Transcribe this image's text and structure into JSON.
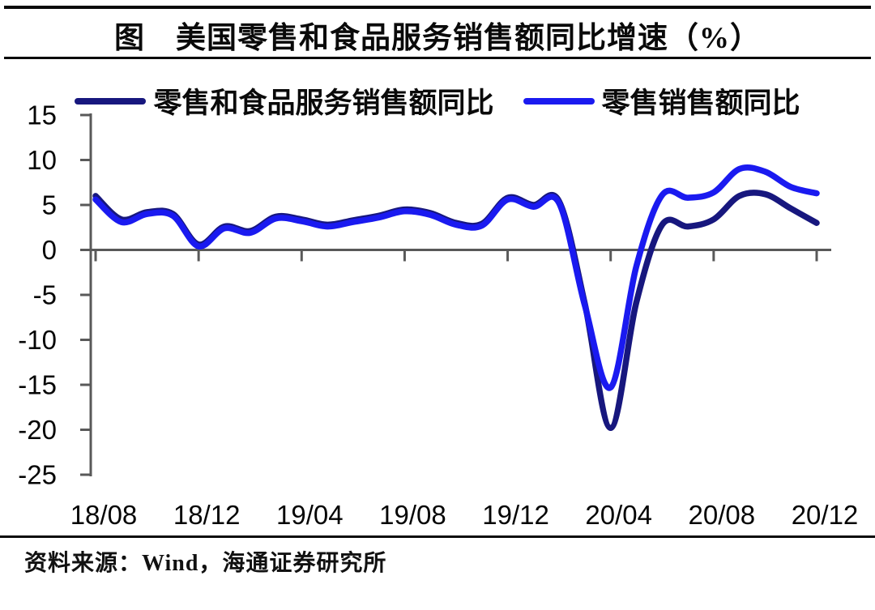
{
  "title": "图　美国零售和食品服务销售额同比增速（%）",
  "legend": [
    {
      "label": "零售和食品服务销售额同比",
      "color": "#17177e"
    },
    {
      "label": "零售销售额同比",
      "color": "#1a1af0"
    }
  ],
  "source": {
    "text": "资料来源：Wind，海通证券研究所"
  },
  "colors": {
    "series_retail_food": "#17177e",
    "series_retail": "#1a1af0",
    "axis": "#595959",
    "text": "#050505",
    "background": "#ffffff"
  },
  "chart_data": {
    "type": "line",
    "title": "图 美国零售和食品服务销售额同比增速（%）",
    "xlabel": "",
    "ylabel": "",
    "ylim": [
      -25,
      15
    ],
    "grid": false,
    "legend_position": "top",
    "x": [
      "18/08",
      "18/09",
      "18/10",
      "18/11",
      "18/12",
      "19/01",
      "19/02",
      "19/03",
      "19/04",
      "19/05",
      "19/06",
      "19/07",
      "19/08",
      "19/09",
      "19/10",
      "19/11",
      "19/12",
      "20/01",
      "20/02",
      "20/03",
      "20/04",
      "20/05",
      "20/06",
      "20/07",
      "20/08",
      "20/09",
      "20/10",
      "20/11",
      "20/12"
    ],
    "x_tick_labels": [
      "18/08",
      "18/12",
      "19/04",
      "19/08",
      "19/12",
      "20/04",
      "20/08",
      "20/12"
    ],
    "y_ticks": [
      15,
      10,
      5,
      0,
      -5,
      -10,
      -15,
      -20,
      -25
    ],
    "series": [
      {
        "name": "零售和食品服务销售额同比",
        "color": "#17177e",
        "values": [
          6.0,
          3.4,
          4.2,
          4.0,
          0.6,
          2.6,
          2.1,
          3.7,
          3.4,
          2.8,
          3.3,
          3.8,
          4.5,
          4.1,
          3.0,
          2.9,
          5.8,
          5.0,
          5.4,
          -6.0,
          -19.8,
          -5.8,
          2.8,
          2.6,
          3.4,
          6.0,
          6.2,
          4.6,
          3.0
        ]
      },
      {
        "name": "零售销售额同比",
        "color": "#1a1af0",
        "values": [
          5.6,
          3.1,
          4.0,
          3.8,
          0.4,
          2.4,
          1.9,
          3.5,
          3.2,
          2.6,
          3.1,
          3.6,
          4.3,
          3.9,
          2.8,
          2.7,
          5.6,
          4.8,
          5.2,
          -6.2,
          -15.3,
          -1.8,
          6.1,
          5.8,
          6.4,
          9.0,
          8.7,
          7.0,
          6.3
        ]
      }
    ]
  }
}
